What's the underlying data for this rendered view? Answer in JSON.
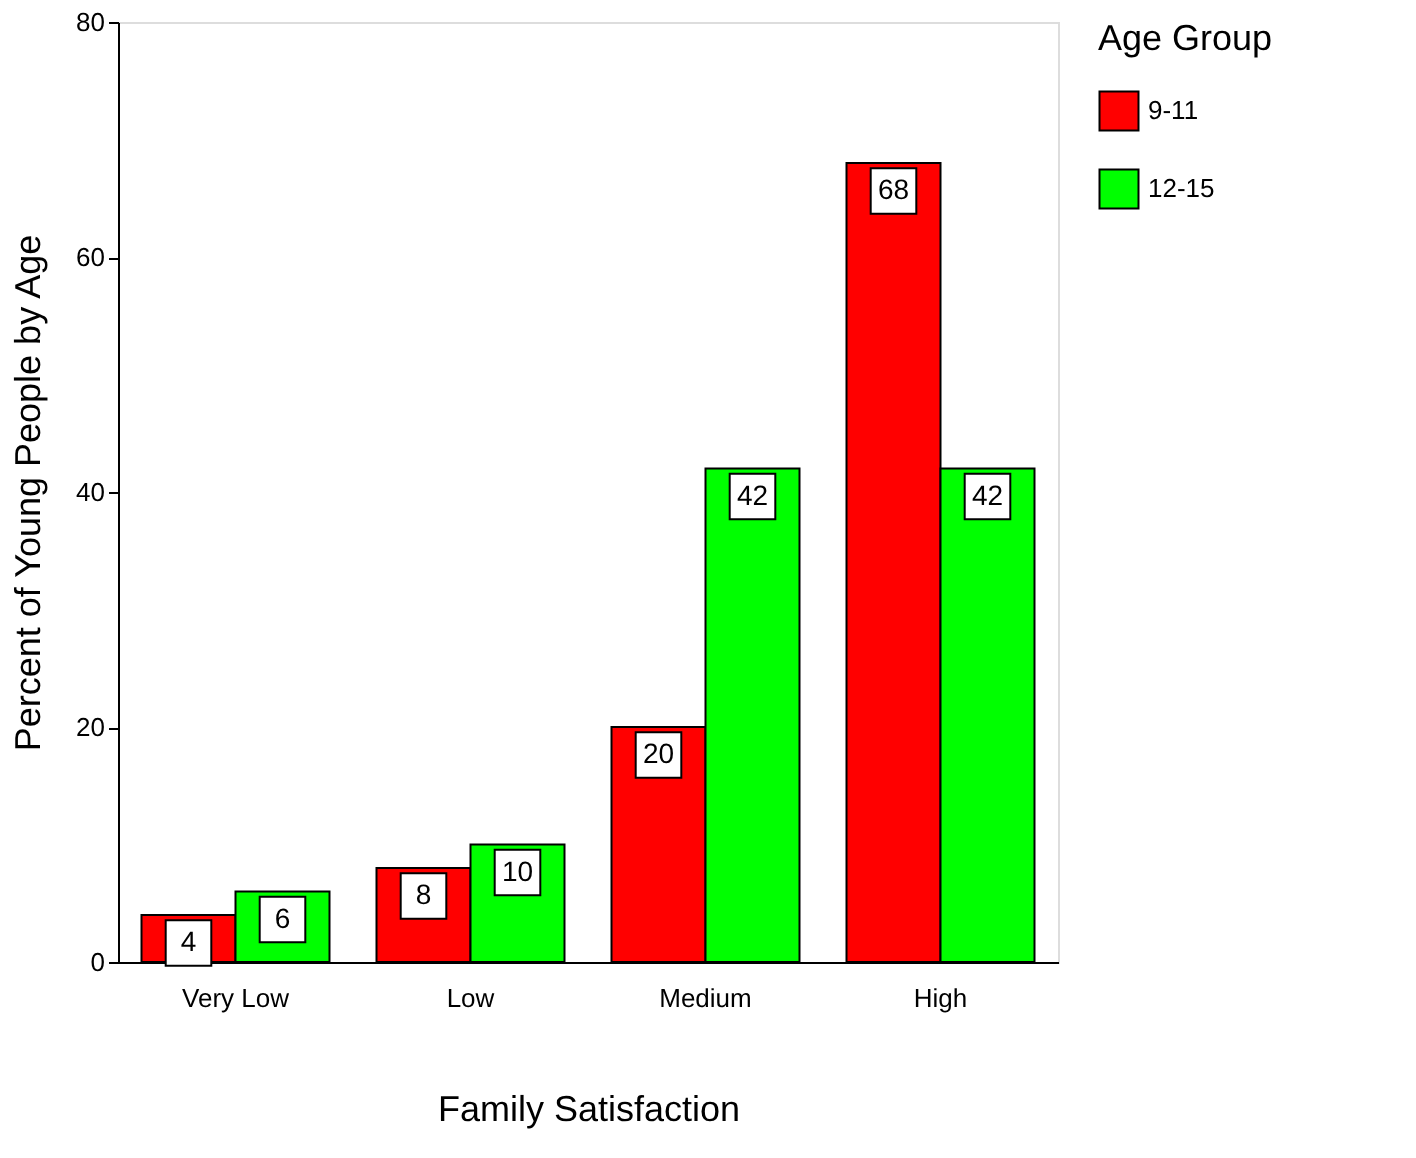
{
  "chart_data": {
    "type": "bar",
    "xlabel": "Family Satisfaction",
    "ylabel": "Percent of Young People by Age",
    "legend_title": "Age Group",
    "categories": [
      "Very Low",
      "Low",
      "Medium",
      "High"
    ],
    "series": [
      {
        "name": "9-11",
        "color": "#ff0000",
        "values": [
          4,
          8,
          20,
          68
        ]
      },
      {
        "name": "12-15",
        "color": "#00ff00",
        "values": [
          6,
          10,
          42,
          42
        ]
      }
    ],
    "ylim": [
      0,
      80
    ],
    "yticks": [
      0,
      20,
      40,
      60,
      80
    ],
    "grid": false,
    "legend": "right",
    "data_labels": true
  }
}
